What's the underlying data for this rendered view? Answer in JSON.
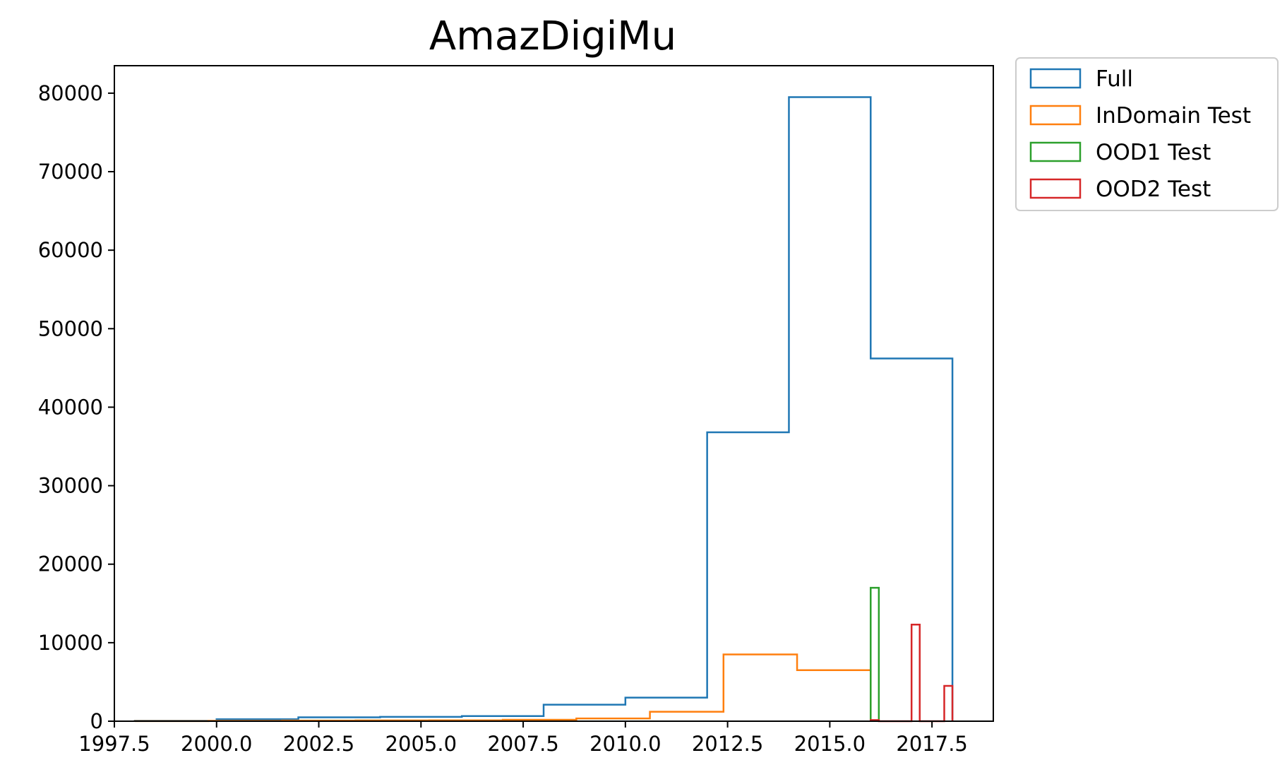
{
  "chart_data": {
    "type": "histogram",
    "title": "AmazDigiMu",
    "xlabel": "",
    "ylabel": "",
    "xlim": [
      1997.5,
      2019.0
    ],
    "ylim": [
      0,
      83500
    ],
    "x_ticks": [
      "1997.5",
      "2000.0",
      "2002.5",
      "2005.0",
      "2007.5",
      "2010.0",
      "2012.5",
      "2015.0",
      "2017.5"
    ],
    "x_tick_values": [
      1997.5,
      2000.0,
      2002.5,
      2005.0,
      2007.5,
      2010.0,
      2012.5,
      2015.0,
      2017.5
    ],
    "y_ticks": [
      "0",
      "10000",
      "20000",
      "30000",
      "40000",
      "50000",
      "60000",
      "70000",
      "80000"
    ],
    "y_tick_values": [
      0,
      10000,
      20000,
      30000,
      40000,
      50000,
      60000,
      70000,
      80000
    ],
    "legend_position": "outside-top-right",
    "grid": false,
    "series": [
      {
        "name": "Full",
        "color": "#1f77b4",
        "bin_edges": [
          1998,
          2000,
          2002,
          2004,
          2006,
          2008,
          2010,
          2012,
          2014,
          2016,
          2018
        ],
        "counts": [
          60,
          250,
          500,
          550,
          650,
          2100,
          3000,
          36800,
          79500,
          46200
        ]
      },
      {
        "name": "InDomain Test",
        "color": "#ff7f0e",
        "bin_edges": [
          1998,
          1999.8,
          2001.6,
          2003.4,
          2005.2,
          2007.0,
          2008.8,
          2010.6,
          2012.4,
          2014.2,
          2016.0
        ],
        "counts": [
          10,
          40,
          80,
          100,
          110,
          180,
          350,
          1200,
          8500,
          6500
        ]
      },
      {
        "name": "OOD1 Test",
        "color": "#2ca02c",
        "bin_edges": [
          2016.0,
          2016.2
        ],
        "counts": [
          17000
        ]
      },
      {
        "name": "OOD2 Test",
        "color": "#d62728",
        "bin_edges": [
          2016.0,
          2016.2,
          2016.4,
          2016.6,
          2016.8,
          2017.0,
          2017.2,
          2017.4,
          2017.6,
          2017.8,
          2018.0
        ],
        "counts": [
          150,
          0,
          0,
          0,
          0,
          12300,
          0,
          0,
          0,
          4500
        ]
      }
    ]
  }
}
